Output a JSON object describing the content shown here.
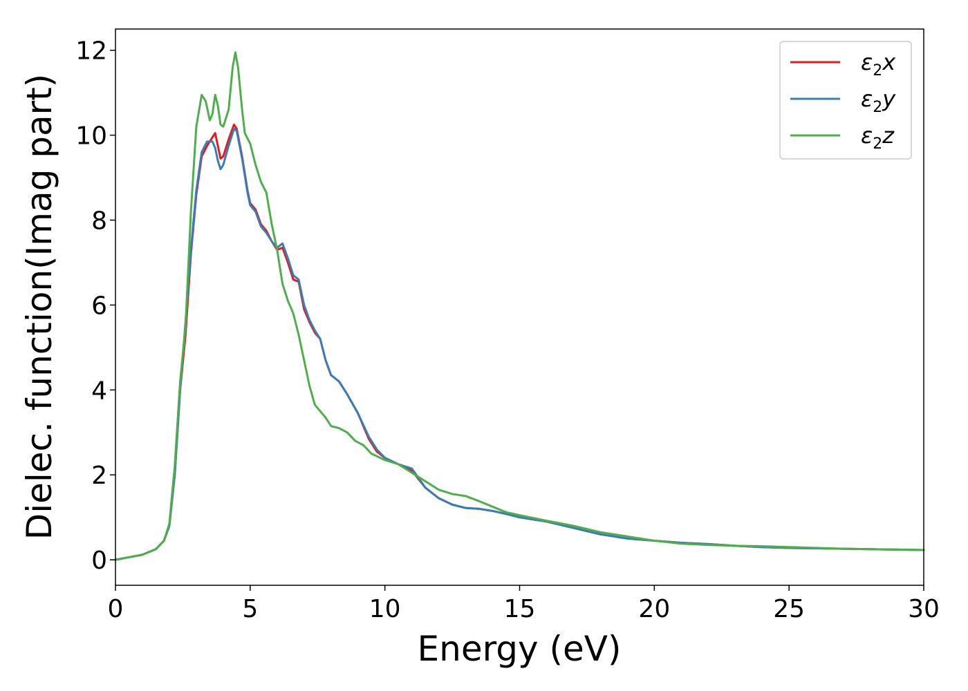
{
  "chart_data": {
    "type": "line",
    "title": "",
    "xlabel": "Energy (eV)",
    "ylabel": "Dielec. function(Imag part)",
    "xlim": [
      0,
      30
    ],
    "ylim": [
      -0.6,
      12.5
    ],
    "xticks": [
      0,
      5,
      10,
      15,
      20,
      25,
      30
    ],
    "yticks": [
      0,
      2,
      4,
      6,
      8,
      10,
      12
    ],
    "grid": false,
    "legend_position": "top-right",
    "series": [
      {
        "name": "ε₂x",
        "legend_base": "ε",
        "legend_sub": "2",
        "legend_suffix": "x",
        "color": "#e41a1c",
        "points": [
          [
            0,
            0.0
          ],
          [
            0.5,
            0.06
          ],
          [
            1.0,
            0.12
          ],
          [
            1.5,
            0.25
          ],
          [
            1.8,
            0.45
          ],
          [
            2.0,
            0.8
          ],
          [
            2.2,
            2.0
          ],
          [
            2.4,
            4.0
          ],
          [
            2.6,
            5.3
          ],
          [
            2.8,
            7.2
          ],
          [
            3.0,
            8.6
          ],
          [
            3.2,
            9.5
          ],
          [
            3.4,
            9.75
          ],
          [
            3.6,
            9.95
          ],
          [
            3.7,
            10.05
          ],
          [
            3.8,
            9.75
          ],
          [
            3.9,
            9.45
          ],
          [
            4.0,
            9.5
          ],
          [
            4.2,
            9.9
          ],
          [
            4.4,
            10.25
          ],
          [
            4.5,
            10.15
          ],
          [
            4.7,
            9.5
          ],
          [
            4.9,
            8.7
          ],
          [
            5.0,
            8.4
          ],
          [
            5.2,
            8.25
          ],
          [
            5.4,
            7.9
          ],
          [
            5.6,
            7.75
          ],
          [
            5.8,
            7.5
          ],
          [
            6.0,
            7.3
          ],
          [
            6.2,
            7.35
          ],
          [
            6.4,
            7.0
          ],
          [
            6.6,
            6.6
          ],
          [
            6.8,
            6.55
          ],
          [
            7.0,
            5.9
          ],
          [
            7.2,
            5.6
          ],
          [
            7.4,
            5.35
          ],
          [
            7.6,
            5.2
          ],
          [
            7.8,
            4.7
          ],
          [
            8.0,
            4.35
          ],
          [
            8.3,
            4.2
          ],
          [
            8.6,
            3.9
          ],
          [
            9.0,
            3.45
          ],
          [
            9.4,
            2.85
          ],
          [
            9.7,
            2.55
          ],
          [
            10.0,
            2.4
          ],
          [
            10.5,
            2.25
          ],
          [
            11.0,
            2.1
          ],
          [
            11.5,
            1.7
          ],
          [
            12.0,
            1.45
          ],
          [
            12.5,
            1.3
          ],
          [
            13.0,
            1.22
          ],
          [
            13.5,
            1.2
          ],
          [
            14.0,
            1.15
          ],
          [
            14.5,
            1.08
          ],
          [
            15.0,
            1.0
          ],
          [
            16.0,
            0.9
          ],
          [
            17.0,
            0.75
          ],
          [
            18.0,
            0.6
          ],
          [
            19.0,
            0.5
          ],
          [
            20.0,
            0.45
          ],
          [
            21.0,
            0.4
          ],
          [
            22.0,
            0.37
          ],
          [
            23.0,
            0.33
          ],
          [
            24.0,
            0.3
          ],
          [
            25.0,
            0.28
          ],
          [
            26.0,
            0.27
          ],
          [
            27.0,
            0.26
          ],
          [
            28.0,
            0.25
          ],
          [
            29.0,
            0.24
          ],
          [
            30.0,
            0.23
          ]
        ]
      },
      {
        "name": "ε₂y",
        "legend_base": "ε",
        "legend_sub": "2",
        "legend_suffix": "y",
        "color": "#377eb8",
        "points": [
          [
            0,
            0.0
          ],
          [
            0.5,
            0.06
          ],
          [
            1.0,
            0.12
          ],
          [
            1.5,
            0.25
          ],
          [
            1.8,
            0.45
          ],
          [
            2.0,
            0.8
          ],
          [
            2.2,
            2.0
          ],
          [
            2.4,
            4.0
          ],
          [
            2.6,
            5.6
          ],
          [
            2.8,
            7.3
          ],
          [
            3.0,
            8.7
          ],
          [
            3.2,
            9.6
          ],
          [
            3.4,
            9.85
          ],
          [
            3.6,
            9.85
          ],
          [
            3.7,
            9.7
          ],
          [
            3.8,
            9.4
          ],
          [
            3.9,
            9.2
          ],
          [
            4.0,
            9.3
          ],
          [
            4.2,
            9.75
          ],
          [
            4.4,
            10.15
          ],
          [
            4.5,
            10.1
          ],
          [
            4.7,
            9.45
          ],
          [
            4.9,
            8.65
          ],
          [
            5.0,
            8.35
          ],
          [
            5.2,
            8.2
          ],
          [
            5.4,
            7.85
          ],
          [
            5.6,
            7.7
          ],
          [
            5.8,
            7.5
          ],
          [
            6.0,
            7.35
          ],
          [
            6.2,
            7.45
          ],
          [
            6.4,
            7.1
          ],
          [
            6.6,
            6.7
          ],
          [
            6.8,
            6.6
          ],
          [
            7.0,
            6.0
          ],
          [
            7.2,
            5.65
          ],
          [
            7.4,
            5.4
          ],
          [
            7.6,
            5.2
          ],
          [
            7.8,
            4.7
          ],
          [
            8.0,
            4.35
          ],
          [
            8.3,
            4.2
          ],
          [
            8.6,
            3.9
          ],
          [
            9.0,
            3.45
          ],
          [
            9.4,
            2.9
          ],
          [
            9.7,
            2.6
          ],
          [
            10.0,
            2.4
          ],
          [
            10.5,
            2.25
          ],
          [
            11.0,
            2.15
          ],
          [
            11.5,
            1.7
          ],
          [
            12.0,
            1.45
          ],
          [
            12.5,
            1.3
          ],
          [
            13.0,
            1.22
          ],
          [
            13.5,
            1.2
          ],
          [
            14.0,
            1.15
          ],
          [
            14.5,
            1.08
          ],
          [
            15.0,
            1.0
          ],
          [
            16.0,
            0.9
          ],
          [
            17.0,
            0.75
          ],
          [
            18.0,
            0.6
          ],
          [
            19.0,
            0.5
          ],
          [
            20.0,
            0.45
          ],
          [
            21.0,
            0.4
          ],
          [
            22.0,
            0.37
          ],
          [
            23.0,
            0.33
          ],
          [
            24.0,
            0.3
          ],
          [
            25.0,
            0.28
          ],
          [
            26.0,
            0.27
          ],
          [
            27.0,
            0.26
          ],
          [
            28.0,
            0.25
          ],
          [
            29.0,
            0.24
          ],
          [
            30.0,
            0.23
          ]
        ]
      },
      {
        "name": "ε₂z",
        "legend_base": "ε",
        "legend_sub": "2",
        "legend_suffix": "z",
        "color": "#4daf4a",
        "points": [
          [
            0,
            0.0
          ],
          [
            0.5,
            0.06
          ],
          [
            1.0,
            0.12
          ],
          [
            1.5,
            0.25
          ],
          [
            1.8,
            0.45
          ],
          [
            2.0,
            0.85
          ],
          [
            2.2,
            2.2
          ],
          [
            2.4,
            4.2
          ],
          [
            2.6,
            5.5
          ],
          [
            2.8,
            8.2
          ],
          [
            3.0,
            10.2
          ],
          [
            3.2,
            10.95
          ],
          [
            3.35,
            10.8
          ],
          [
            3.5,
            10.35
          ],
          [
            3.6,
            10.5
          ],
          [
            3.7,
            10.95
          ],
          [
            3.8,
            10.7
          ],
          [
            3.9,
            10.25
          ],
          [
            4.0,
            10.2
          ],
          [
            4.2,
            10.6
          ],
          [
            4.35,
            11.6
          ],
          [
            4.45,
            11.95
          ],
          [
            4.55,
            11.6
          ],
          [
            4.7,
            10.6
          ],
          [
            4.8,
            10.05
          ],
          [
            5.0,
            9.8
          ],
          [
            5.2,
            9.3
          ],
          [
            5.4,
            8.9
          ],
          [
            5.6,
            8.65
          ],
          [
            5.8,
            7.9
          ],
          [
            6.0,
            7.3
          ],
          [
            6.2,
            6.5
          ],
          [
            6.4,
            6.1
          ],
          [
            6.6,
            5.8
          ],
          [
            6.8,
            5.3
          ],
          [
            7.0,
            4.7
          ],
          [
            7.2,
            4.1
          ],
          [
            7.4,
            3.65
          ],
          [
            7.6,
            3.5
          ],
          [
            7.8,
            3.35
          ],
          [
            8.0,
            3.15
          ],
          [
            8.3,
            3.1
          ],
          [
            8.6,
            3.0
          ],
          [
            8.9,
            2.8
          ],
          [
            9.2,
            2.7
          ],
          [
            9.5,
            2.5
          ],
          [
            10.0,
            2.35
          ],
          [
            10.5,
            2.25
          ],
          [
            11.0,
            2.05
          ],
          [
            11.5,
            1.85
          ],
          [
            12.0,
            1.65
          ],
          [
            12.5,
            1.55
          ],
          [
            13.0,
            1.5
          ],
          [
            13.5,
            1.38
          ],
          [
            14.0,
            1.25
          ],
          [
            14.5,
            1.12
          ],
          [
            15.0,
            1.05
          ],
          [
            16.0,
            0.92
          ],
          [
            17.0,
            0.8
          ],
          [
            18.0,
            0.65
          ],
          [
            19.0,
            0.55
          ],
          [
            20.0,
            0.45
          ],
          [
            21.0,
            0.38
          ],
          [
            22.0,
            0.35
          ],
          [
            23.0,
            0.33
          ],
          [
            24.0,
            0.32
          ],
          [
            25.0,
            0.3
          ],
          [
            26.0,
            0.28
          ],
          [
            27.0,
            0.26
          ],
          [
            28.0,
            0.25
          ],
          [
            29.0,
            0.24
          ],
          [
            30.0,
            0.23
          ]
        ]
      }
    ]
  }
}
